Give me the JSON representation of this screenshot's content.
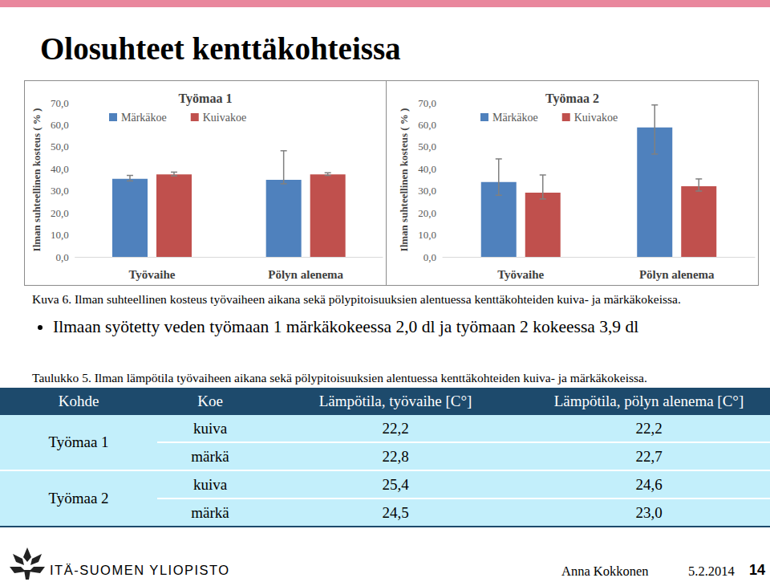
{
  "title": "Olosuhteet kenttäkohteissa",
  "chart_data": [
    {
      "type": "bar",
      "title": "Työmaa 1",
      "ylabel": "Ilman suhteellinen kosteus ( % )",
      "categories": [
        "Työvaihe",
        "Pölyn alenema"
      ],
      "series": [
        {
          "name": "Märkäkoe",
          "color": "#4f81bd",
          "values": [
            35.5,
            35.0
          ],
          "error_low": [
            34.5,
            33.2
          ],
          "error_high": [
            37.0,
            48.2
          ]
        },
        {
          "name": "Kuivakoe",
          "color": "#c0504d",
          "values": [
            37.5,
            37.5
          ],
          "error_low": [
            36.8,
            37.0
          ],
          "error_high": [
            38.5,
            38.2
          ]
        }
      ],
      "ylim": [
        0,
        70
      ],
      "yticks": [
        {
          "value": 0,
          "label": "0,0"
        },
        {
          "value": 10,
          "label": "10,0"
        },
        {
          "value": 20,
          "label": "20,0"
        },
        {
          "value": 30,
          "label": "30,0"
        },
        {
          "value": 40,
          "label": "40,0"
        },
        {
          "value": 50,
          "label": "50,0"
        },
        {
          "value": 60,
          "label": "60,0"
        },
        {
          "value": 70,
          "label": "70,0"
        }
      ],
      "grid": false,
      "legend": "top"
    },
    {
      "type": "bar",
      "title": "Työmaa 2",
      "ylabel": "Ilman suhteellinen kosteus ( % )",
      "categories": [
        "Työvaihe",
        "Pölyn alenema"
      ],
      "series": [
        {
          "name": "Märkäkoe",
          "color": "#4f81bd",
          "values": [
            34.0,
            58.8
          ],
          "error_low": [
            28.0,
            46.7
          ],
          "error_high": [
            44.5,
            69.0
          ]
        },
        {
          "name": "Kuivakoe",
          "color": "#c0504d",
          "values": [
            29.2,
            32.1
          ],
          "error_low": [
            26.3,
            29.9
          ],
          "error_high": [
            37.2,
            35.4
          ]
        }
      ],
      "ylim": [
        0,
        70
      ],
      "yticks": [
        {
          "value": 0,
          "label": "0,0"
        },
        {
          "value": 10,
          "label": "10,0"
        },
        {
          "value": 20,
          "label": "20,0"
        },
        {
          "value": 30,
          "label": "30,0"
        },
        {
          "value": 40,
          "label": "40,0"
        },
        {
          "value": 50,
          "label": "50,0"
        },
        {
          "value": 60,
          "label": "60,0"
        },
        {
          "value": 70,
          "label": "70,0"
        }
      ],
      "grid": false,
      "legend": "top"
    }
  ],
  "caption": "Kuva 6. Ilman suhteellinen kosteus työvaiheen aikana sekä pölypitoisuuksien alentuessa kenttäkohteiden kuiva- ja märkäkokeissa.",
  "bullet": "Ilmaan syötetty veden työmaan 1 märkäkokeessa 2,0 dl ja työmaan 2 kokeessa 3,9 dl",
  "table": {
    "caption": "Taulukko 5. Ilman lämpötila työvaiheen aikana sekä pölypitoisuuksien alentuessa kenttäkohteiden kuiva- ja märkäkokeissa.",
    "header": [
      "Kohde",
      "Koe",
      "Lämpötila, työvaihe [C°]",
      "Lämpötila, pölyn alenema [C°]"
    ],
    "groups": [
      {
        "site": "Työmaa 1",
        "rows": [
          [
            "kuiva",
            "22,2",
            "22,2"
          ],
          [
            "märkä",
            "22,8",
            "22,7"
          ]
        ]
      },
      {
        "site": "Työmaa 2",
        "rows": [
          [
            "kuiva",
            "25,4",
            "24,6"
          ],
          [
            "märkä",
            "24,5",
            "23,0"
          ]
        ]
      }
    ]
  },
  "footer": {
    "institution": "ITÄ-SUOMEN YLIOPISTO",
    "author": "Anna Kokkonen",
    "date": "5.2.2014",
    "page": "14"
  }
}
